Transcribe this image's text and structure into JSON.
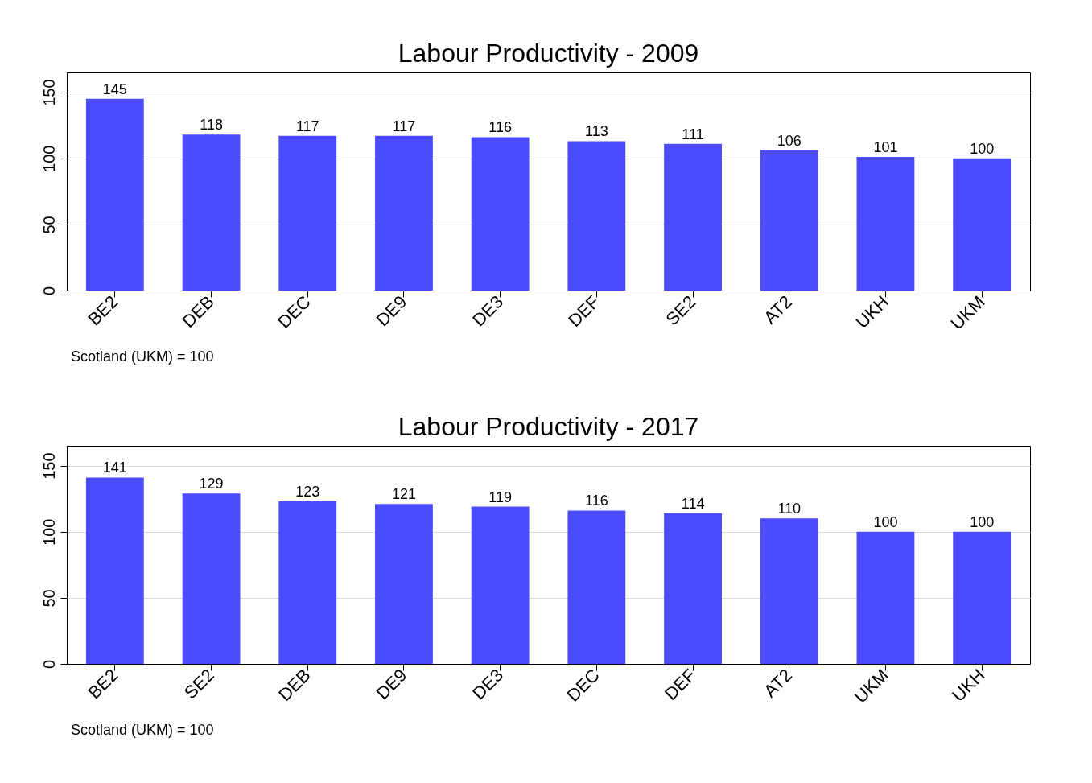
{
  "chart_data": [
    {
      "type": "bar",
      "title": "Labour Productivity - 2009",
      "categories": [
        "BE2",
        "DEB",
        "DEC",
        "DE9",
        "DE3",
        "DEF",
        "SE2",
        "AT2",
        "UKH",
        "UKM"
      ],
      "values": [
        145,
        118,
        117,
        117,
        116,
        113,
        111,
        106,
        101,
        100
      ],
      "color": "#4c4cff",
      "ylim": [
        0,
        165
      ],
      "yticks": [
        0,
        50,
        100,
        150
      ],
      "grid": "y",
      "data_labels": true,
      "annotations": [
        "Scotland (UKM) = 100"
      ]
    },
    {
      "type": "bar",
      "title": "Labour Productivity - 2017",
      "categories": [
        "BE2",
        "SE2",
        "DEB",
        "DE9",
        "DE3",
        "DEC",
        "DEF",
        "AT2",
        "UKM",
        "UKH"
      ],
      "values": [
        141,
        129,
        123,
        121,
        119,
        116,
        114,
        110,
        100,
        100
      ],
      "color": "#4c4cff",
      "ylim": [
        0,
        165
      ],
      "yticks": [
        0,
        50,
        100,
        150
      ],
      "grid": "y",
      "data_labels": true,
      "annotations": [
        "Scotland (UKM) = 100"
      ]
    }
  ]
}
